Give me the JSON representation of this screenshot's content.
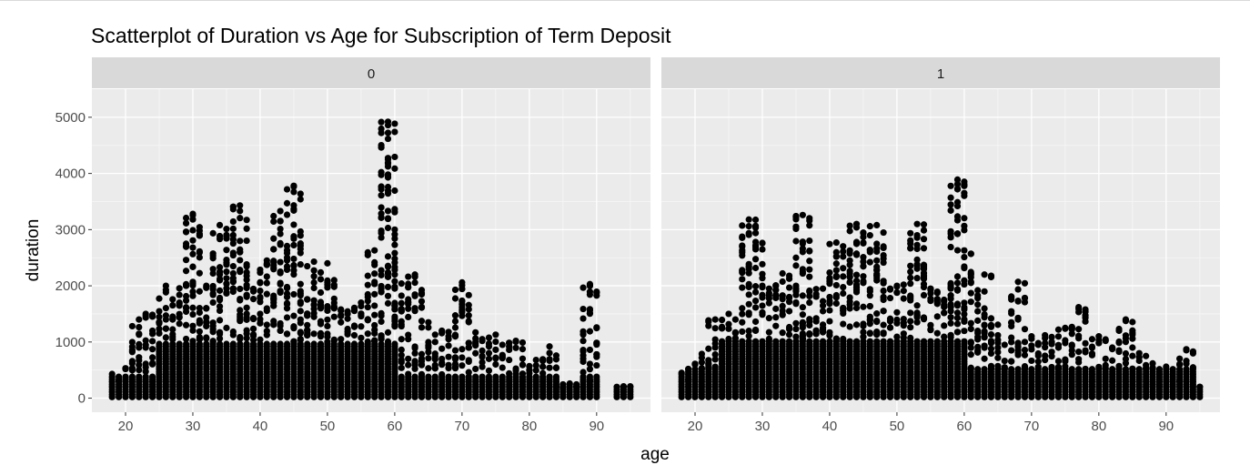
{
  "chart_data": {
    "type": "scatter",
    "title": "Scatterplot of Duration vs Age for Subscription of Term Deposit",
    "xlabel": "age",
    "ylabel": "duration",
    "xlim": [
      15,
      98
    ],
    "ylim": [
      -250,
      5500
    ],
    "x_ticks": [
      "20",
      "30",
      "40",
      "50",
      "60",
      "70",
      "80",
      "90"
    ],
    "y_ticks": [
      "0",
      "1000",
      "2000",
      "3000",
      "4000",
      "5000"
    ],
    "x_tick_values": [
      20,
      30,
      40,
      50,
      60,
      70,
      80,
      90
    ],
    "y_tick_values": [
      0,
      1000,
      2000,
      3000,
      4000,
      5000
    ],
    "grid": true,
    "point_color": "#000000",
    "panel_background": "#ebebeb",
    "strip_background": "#d9d9d9",
    "facets": [
      {
        "label": "0",
        "points": [
          [
            18,
            430
          ],
          [
            19,
            310
          ],
          [
            20,
            350
          ],
          [
            21,
            620
          ],
          [
            22,
            900
          ],
          [
            22,
            1400
          ],
          [
            23,
            1500
          ],
          [
            24,
            1200
          ],
          [
            25,
            1350
          ],
          [
            26,
            2000
          ],
          [
            27,
            1400
          ],
          [
            28,
            1700
          ],
          [
            29,
            2000
          ],
          [
            30,
            2050
          ],
          [
            30,
            3280
          ],
          [
            31,
            1900
          ],
          [
            32,
            2000
          ],
          [
            33,
            2220
          ],
          [
            34,
            3080
          ],
          [
            34,
            2200
          ],
          [
            35,
            2250
          ],
          [
            36,
            1950
          ],
          [
            37,
            3430
          ],
          [
            38,
            1500
          ],
          [
            39,
            1900
          ],
          [
            40,
            2050
          ],
          [
            40,
            1800
          ],
          [
            41,
            2450
          ],
          [
            42,
            1700
          ],
          [
            43,
            3330
          ],
          [
            43,
            2250
          ],
          [
            44,
            1800
          ],
          [
            45,
            3780
          ],
          [
            45,
            3370
          ],
          [
            45,
            2880
          ],
          [
            45,
            2480
          ],
          [
            46,
            1550
          ],
          [
            47,
            1300
          ],
          [
            48,
            2430
          ],
          [
            49,
            1100
          ],
          [
            50,
            2400
          ],
          [
            50,
            1600
          ],
          [
            51,
            1600
          ],
          [
            52,
            1350
          ],
          [
            53,
            1500
          ],
          [
            54,
            1600
          ],
          [
            55,
            1700
          ],
          [
            56,
            1800
          ],
          [
            57,
            2630
          ],
          [
            57,
            1850
          ],
          [
            58,
            1950
          ],
          [
            59,
            4920
          ],
          [
            59,
            3030
          ],
          [
            60,
            2200
          ],
          [
            61,
            1050
          ],
          [
            62,
            700
          ],
          [
            63,
            2200
          ],
          [
            64,
            600
          ],
          [
            65,
            1350
          ],
          [
            66,
            1000
          ],
          [
            67,
            1200
          ],
          [
            68,
            1050
          ],
          [
            69,
            850
          ],
          [
            70,
            2060
          ],
          [
            70,
            1580
          ],
          [
            71,
            900
          ],
          [
            72,
            1170
          ],
          [
            73,
            750
          ],
          [
            74,
            700
          ],
          [
            75,
            1130
          ],
          [
            76,
            950
          ],
          [
            77,
            680
          ],
          [
            78,
            1020
          ],
          [
            79,
            590
          ],
          [
            80,
            570
          ],
          [
            81,
            680
          ],
          [
            82,
            560
          ],
          [
            83,
            920
          ],
          [
            84,
            200
          ],
          [
            85,
            180
          ],
          [
            86,
            260
          ],
          [
            87,
            200
          ],
          [
            88,
            190
          ],
          [
            89,
            2030
          ],
          [
            89,
            310
          ],
          [
            94,
            210
          ],
          [
            95,
            210
          ]
        ]
      },
      {
        "label": "1",
        "points": [
          [
            18,
            450
          ],
          [
            19,
            330
          ],
          [
            20,
            600
          ],
          [
            21,
            720
          ],
          [
            22,
            880
          ],
          [
            23,
            1400
          ],
          [
            24,
            1250
          ],
          [
            25,
            1500
          ],
          [
            26,
            1400
          ],
          [
            27,
            1600
          ],
          [
            28,
            3180
          ],
          [
            28,
            2300
          ],
          [
            29,
            2780
          ],
          [
            29,
            2650
          ],
          [
            30,
            2000
          ],
          [
            31,
            1950
          ],
          [
            32,
            2000
          ],
          [
            33,
            2220
          ],
          [
            34,
            1800
          ],
          [
            35,
            1950
          ],
          [
            36,
            3260
          ],
          [
            36,
            2750
          ],
          [
            36,
            2660
          ],
          [
            37,
            1700
          ],
          [
            38,
            1850
          ],
          [
            39,
            1950
          ],
          [
            40,
            1800
          ],
          [
            41,
            2770
          ],
          [
            42,
            2520
          ],
          [
            43,
            2450
          ],
          [
            44,
            3100
          ],
          [
            45,
            2080
          ],
          [
            46,
            1900
          ],
          [
            47,
            3080
          ],
          [
            47,
            2450
          ],
          [
            48,
            1800
          ],
          [
            49,
            1950
          ],
          [
            50,
            2000
          ],
          [
            51,
            2020
          ],
          [
            52,
            1800
          ],
          [
            53,
            3100
          ],
          [
            53,
            2380
          ],
          [
            54,
            2030
          ],
          [
            55,
            1950
          ],
          [
            56,
            1700
          ],
          [
            57,
            1750
          ],
          [
            58,
            1950
          ],
          [
            59,
            3890
          ],
          [
            60,
            2630
          ],
          [
            61,
            1000
          ],
          [
            62,
            1380
          ],
          [
            63,
            2200
          ],
          [
            64,
            1420
          ],
          [
            65,
            900
          ],
          [
            66,
            950
          ],
          [
            67,
            850
          ],
          [
            68,
            2070
          ],
          [
            69,
            1000
          ],
          [
            70,
            1100
          ],
          [
            71,
            950
          ],
          [
            72,
            1120
          ],
          [
            73,
            1000
          ],
          [
            74,
            900
          ],
          [
            75,
            1250
          ],
          [
            76,
            950
          ],
          [
            77,
            1620
          ],
          [
            78,
            850
          ],
          [
            79,
            1050
          ],
          [
            80,
            1100
          ],
          [
            81,
            700
          ],
          [
            82,
            900
          ],
          [
            83,
            850
          ],
          [
            84,
            1400
          ],
          [
            85,
            900
          ],
          [
            86,
            800
          ],
          [
            87,
            750
          ],
          [
            88,
            250
          ],
          [
            90,
            560
          ],
          [
            92,
            300
          ],
          [
            93,
            870
          ],
          [
            93,
            470
          ],
          [
            95,
            200
          ]
        ]
      }
    ]
  }
}
